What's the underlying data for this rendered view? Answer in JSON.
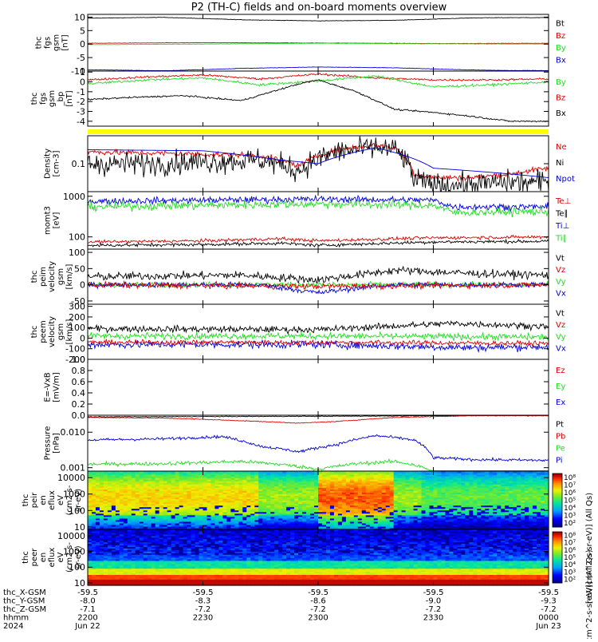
{
  "title": "P2 (TH-C) fields and on-board moments overview",
  "time_axis": {
    "start": "2024-06-22T22:00",
    "end": "2024-06-23T00:00",
    "tick_hhmm": [
      "2200",
      "2230",
      "2300",
      "2330",
      "0000"
    ],
    "date_labels": [
      "Jun 22",
      "Jun 23"
    ],
    "year": "2024",
    "ephemeris": [
      {
        "label": "thc_X-GSM",
        "values": [
          "-59.5",
          "-59.5",
          "-59.5",
          "-59.5",
          "-59.5"
        ]
      },
      {
        "label": "thc_Y-GSM",
        "values": [
          "-8.0",
          "-8.3",
          "-8.6",
          "-9.0",
          "-9.3"
        ]
      },
      {
        "label": "thc_Z-GSM",
        "values": [
          "-7.1",
          "-7.2",
          "-7.2",
          "-7.2",
          "-7.2"
        ]
      },
      {
        "label": "hhmm",
        "values": [
          "2200",
          "2230",
          "2300",
          "2330",
          "0000"
        ]
      },
      {
        "label": "2024",
        "values": [
          "Jun 22",
          "",
          "",
          "",
          "Jun 23"
        ]
      }
    ]
  },
  "colors": {
    "black": "#000000",
    "red": "#dd0000",
    "green": "#22dd22",
    "blue": "#0000dd",
    "yellow": "#ffff00"
  },
  "chart_data": [
    {
      "type": "line",
      "ylabel": [
        "thc",
        "fgs",
        "gsm",
        "[nT]"
      ],
      "ylim": [
        -10,
        11
      ],
      "yticks": [
        "10",
        "5",
        "0",
        "-5",
        "-10"
      ],
      "ytick_values": [
        10,
        5,
        0,
        -5,
        -10
      ],
      "legend": [
        "Bt",
        "Bz",
        "By",
        "Bx"
      ],
      "legend_colors": [
        "#000000",
        "#dd0000",
        "#22dd22",
        "#0000dd"
      ],
      "series": [
        {
          "name": "Bt",
          "color": "#000000",
          "noise": 0.08,
          "x": [
            0,
            20,
            40,
            60,
            80,
            100,
            110,
            120
          ],
          "y": [
            9.6,
            9.9,
            9.0,
            8.6,
            8.8,
            9.7,
            9.8,
            9.8
          ]
        },
        {
          "name": "Bz",
          "color": "#dd0000",
          "noise": 0.08,
          "x": [
            0,
            30,
            60,
            90,
            120
          ],
          "y": [
            0.3,
            0.5,
            0.4,
            0.2,
            0.3
          ]
        },
        {
          "name": "By",
          "color": "#22dd22",
          "noise": 0.08,
          "x": [
            0,
            30,
            60,
            90,
            120
          ],
          "y": [
            -0.2,
            0.0,
            0.3,
            0.1,
            0.0
          ]
        },
        {
          "name": "Bx",
          "color": "#0000dd",
          "noise": 0.08,
          "x": [
            0,
            20,
            40,
            60,
            80,
            100,
            110,
            120
          ],
          "y": [
            -9.5,
            -9.9,
            -9.0,
            -8.5,
            -8.8,
            -9.6,
            -9.8,
            -9.8
          ]
        }
      ]
    },
    {
      "type": "line",
      "ylabel": [
        "thc",
        "fgs",
        "gsm",
        "_bp",
        "[nT]"
      ],
      "ylim": [
        -4.5,
        1.1
      ],
      "yticks": [
        "1",
        "0",
        "-1",
        "-2",
        "-3",
        "-4"
      ],
      "ytick_values": [
        1,
        0,
        -1,
        -2,
        -3,
        -4
      ],
      "legend": [
        "By",
        "Bz",
        "Bx"
      ],
      "legend_colors": [
        "#22dd22",
        "#dd0000",
        "#000000"
      ],
      "series": [
        {
          "name": "Bz",
          "color": "#dd0000",
          "noise": 0.1,
          "x": [
            0,
            15,
            30,
            45,
            60,
            75,
            90,
            105,
            120
          ],
          "y": [
            0.2,
            0.5,
            0.7,
            0.3,
            0.8,
            0.4,
            0.2,
            0.2,
            0.3
          ]
        },
        {
          "name": "By",
          "color": "#22dd22",
          "noise": 0.12,
          "x": [
            0,
            15,
            30,
            45,
            60,
            75,
            90,
            105,
            120
          ],
          "y": [
            -0.2,
            0.2,
            0.4,
            -0.3,
            0.1,
            0.6,
            -0.5,
            -0.3,
            0.0
          ]
        },
        {
          "name": "Bx",
          "color": "#000000",
          "noise": 0.08,
          "x": [
            0,
            10,
            25,
            40,
            55,
            60,
            70,
            80,
            90,
            100,
            110,
            120
          ],
          "y": [
            -1.8,
            -1.6,
            -1.4,
            -1.9,
            -0.2,
            0.2,
            -1.0,
            -2.8,
            -3.1,
            -3.5,
            -4.0,
            -4.0
          ]
        }
      ]
    },
    {
      "type": "line",
      "ylabel": [
        "Density",
        "[cm-3]"
      ],
      "yscale": "log",
      "ylim": [
        0.025,
        0.4
      ],
      "yticks": [
        "0.1"
      ],
      "ytick_values": [
        0.1
      ],
      "legend": [
        "Ne",
        "Ni",
        "Npot"
      ],
      "legend_colors": [
        "#dd0000",
        "#000000",
        "#0000dd"
      ],
      "series": [
        {
          "name": "Ne",
          "color": "#dd0000",
          "noise": 0.06,
          "x": [
            0,
            15,
            30,
            45,
            55,
            65,
            75,
            80,
            85,
            90,
            100,
            110,
            120
          ],
          "y": [
            0.18,
            0.17,
            0.16,
            0.15,
            0.09,
            0.2,
            0.25,
            0.22,
            0.06,
            0.05,
            0.05,
            0.06,
            0.08
          ]
        },
        {
          "name": "Ni",
          "color": "#000000",
          "noise": 0.25,
          "x": [
            0,
            15,
            30,
            45,
            55,
            65,
            75,
            80,
            85,
            90,
            100,
            110,
            120
          ],
          "y": [
            0.1,
            0.1,
            0.11,
            0.12,
            0.07,
            0.18,
            0.22,
            0.2,
            0.045,
            0.035,
            0.035,
            0.04,
            0.04
          ]
        },
        {
          "name": "Npot",
          "color": "#0000dd",
          "noise": 0.0,
          "x": [
            0,
            30,
            50,
            60,
            75,
            90,
            120
          ],
          "y": [
            0.2,
            0.19,
            0.12,
            0.1,
            0.22,
            0.08,
            0.05
          ]
        }
      ]
    },
    {
      "type": "line",
      "ylabel": [
        "momt3",
        "[eV]"
      ],
      "yscale": "log",
      "ylim": [
        50,
        1300
      ],
      "yticks": [
        "1000",
        "100"
      ],
      "ytick_values": [
        1000,
        100
      ],
      "legend": [
        "Te⊥",
        "Te∥",
        "Ti⊥",
        "Ti∥"
      ],
      "legend_colors": [
        "#dd0000",
        "#000000",
        "#0000dd",
        "#22dd22"
      ],
      "series": [
        {
          "name": "Ti⊥",
          "color": "#0000dd",
          "noise": 0.08,
          "x": [
            0,
            30,
            60,
            90,
            95,
            120
          ],
          "y": [
            750,
            800,
            850,
            800,
            550,
            550
          ]
        },
        {
          "name": "Ti∥",
          "color": "#22dd22",
          "noise": 0.1,
          "x": [
            0,
            30,
            60,
            90,
            95,
            120
          ],
          "y": [
            550,
            600,
            650,
            600,
            400,
            420
          ]
        },
        {
          "name": "Te⊥",
          "color": "#dd0000",
          "noise": 0.04,
          "x": [
            0,
            30,
            50,
            60,
            90,
            120
          ],
          "y": [
            75,
            80,
            90,
            80,
            95,
            100
          ]
        },
        {
          "name": "Te∥",
          "color": "#000000",
          "noise": 0.04,
          "x": [
            0,
            30,
            50,
            60,
            90,
            120
          ],
          "y": [
            62,
            65,
            70,
            62,
            75,
            78
          ]
        }
      ]
    },
    {
      "type": "line",
      "ylabel": [
        "thc",
        "peim",
        "velocity",
        "gsm",
        "[km/s]"
      ],
      "ylim": [
        -60,
        110
      ],
      "yticks": [
        "100",
        "50",
        "0",
        "-50"
      ],
      "ytick_values": [
        100,
        50,
        0,
        -50
      ],
      "legend": [
        "Vt",
        "Vz",
        "Vy",
        "Vx"
      ],
      "legend_colors": [
        "#000000",
        "#dd0000",
        "#22dd22",
        "#0000dd"
      ],
      "series": [
        {
          "name": "Vy",
          "color": "#22dd22",
          "noise": 8,
          "x": [
            0,
            60,
            120
          ],
          "y": [
            0,
            0,
            0
          ]
        },
        {
          "name": "Vx",
          "color": "#0000dd",
          "noise": 8,
          "x": [
            0,
            45,
            60,
            70,
            80,
            120
          ],
          "y": [
            0,
            0,
            -25,
            -10,
            0,
            0
          ]
        },
        {
          "name": "Vt",
          "color": "#000000",
          "noise": 12,
          "x": [
            0,
            40,
            60,
            80,
            100,
            120
          ],
          "y": [
            25,
            30,
            15,
            45,
            35,
            30
          ]
        },
        {
          "name": "Vz",
          "color": "#dd0000",
          "noise": 9,
          "x": [
            0,
            60,
            120
          ],
          "y": [
            0,
            -5,
            0
          ]
        }
      ]
    },
    {
      "type": "line",
      "ylabel": [
        "thc",
        "peem",
        "velocity",
        "gsm",
        "[km/s]"
      ],
      "ylim": [
        -200,
        320
      ],
      "yticks": [
        "300",
        "200",
        "100",
        "0",
        "-100",
        "-200"
      ],
      "ytick_values": [
        300,
        200,
        100,
        0,
        -100,
        -200
      ],
      "legend": [
        "Vt",
        "Vz",
        "Vy",
        "Vx"
      ],
      "legend_colors": [
        "#000000",
        "#dd0000",
        "#22dd22",
        "#0000dd"
      ],
      "series": [
        {
          "name": "Vx",
          "color": "#0000dd",
          "noise": 35,
          "x": [
            0,
            60,
            100,
            120
          ],
          "y": [
            -60,
            -60,
            -90,
            -80
          ]
        },
        {
          "name": "Vy",
          "color": "#22dd22",
          "noise": 30,
          "x": [
            0,
            60,
            120
          ],
          "y": [
            20,
            20,
            10
          ]
        },
        {
          "name": "Vt",
          "color": "#000000",
          "noise": 30,
          "x": [
            0,
            60,
            95,
            120
          ],
          "y": [
            90,
            80,
            140,
            110
          ]
        },
        {
          "name": "Vz",
          "color": "#dd0000",
          "noise": 22,
          "x": [
            0,
            60,
            120
          ],
          "y": [
            -40,
            -40,
            -50
          ]
        }
      ]
    },
    {
      "type": "line",
      "ylabel": [
        "E=-VxB",
        "[mV/m]"
      ],
      "ylim": [
        0,
        1
      ],
      "yticks": [
        "1.0",
        "0.8",
        "0.6",
        "0.4",
        "0.2",
        "0.0"
      ],
      "ytick_values": [
        1,
        0.8,
        0.6,
        0.4,
        0.2,
        0
      ],
      "legend": [
        "Ez",
        "Ey",
        "Ex"
      ],
      "legend_colors": [
        "#dd0000",
        "#22dd22",
        "#0000dd"
      ],
      "series": []
    },
    {
      "type": "line",
      "ylabel": [
        "Pressure",
        "[nPa]"
      ],
      "yscale": "log",
      "ylim": [
        0.0008,
        0.03
      ],
      "yticks": [
        "0.010",
        "0.001"
      ],
      "ytick_values": [
        0.01,
        0.001
      ],
      "legend": [
        "Pt",
        "Pb",
        "Pe",
        "Pi"
      ],
      "legend_colors": [
        "#000000",
        "#dd0000",
        "#22dd22",
        "#0000dd"
      ],
      "series": [
        {
          "name": "Pt",
          "color": "#000000",
          "noise": 0.01,
          "x": [
            0,
            60,
            120
          ],
          "y": [
            0.027,
            0.028,
            0.03
          ]
        },
        {
          "name": "Pb",
          "color": "#dd0000",
          "noise": 0.01,
          "x": [
            0,
            20,
            40,
            55,
            65,
            80,
            100,
            120
          ],
          "y": [
            0.026,
            0.025,
            0.021,
            0.018,
            0.02,
            0.026,
            0.029,
            0.029
          ]
        },
        {
          "name": "Pi",
          "color": "#0000dd",
          "noise": 0.04,
          "x": [
            0,
            20,
            35,
            45,
            55,
            65,
            75,
            85,
            90,
            100,
            120
          ],
          "y": [
            0.006,
            0.0065,
            0.0075,
            0.004,
            0.0028,
            0.0045,
            0.008,
            0.006,
            0.0019,
            0.0017,
            0.0016
          ]
        },
        {
          "name": "Pe",
          "color": "#22dd22",
          "noise": 0.05,
          "x": [
            0,
            20,
            40,
            50,
            60,
            70,
            80,
            85,
            90,
            100,
            120
          ],
          "y": [
            0.00125,
            0.0013,
            0.0015,
            0.00125,
            0.0009,
            0.0013,
            0.0015,
            0.0012,
            0.00078,
            0.00072,
            0.0007
          ]
        }
      ]
    },
    {
      "type": "heatmap",
      "ylabel": [
        "thc",
        "peir",
        "en",
        "eflux",
        "eV",
        "(cm2-s-",
        "sr-eV)"
      ],
      "yscale": "log",
      "ylim": [
        7,
        25000
      ],
      "yticks": [
        "10000",
        "1000",
        "100",
        "10"
      ],
      "ytick_values": [
        10000,
        1000,
        100,
        10
      ],
      "colorbar_ticks": [
        "10⁸",
        "10⁷",
        "10⁶",
        "10⁵",
        "10⁴",
        "10³",
        "10²"
      ],
      "colorbar_label": "[eV/(cm^2-s-sr-eV)] (All Qs)"
    },
    {
      "type": "heatmap",
      "ylabel": [
        "thc",
        "peer",
        "en",
        "eflux",
        "eV",
        "(cm2-s-",
        "sr-eV)"
      ],
      "yscale": "log",
      "ylim": [
        7,
        25000
      ],
      "yticks": [
        "10000",
        "1000",
        "100",
        "10"
      ],
      "ytick_values": [
        10000,
        1000,
        100,
        10
      ],
      "colorbar_ticks": [
        "10⁸",
        "10⁷",
        "10⁶",
        "10⁵",
        "10⁴",
        "10³",
        "10²"
      ],
      "colorbar_label": "[eV/(cm^2-s-sr-eV)] (All Qs)"
    }
  ]
}
